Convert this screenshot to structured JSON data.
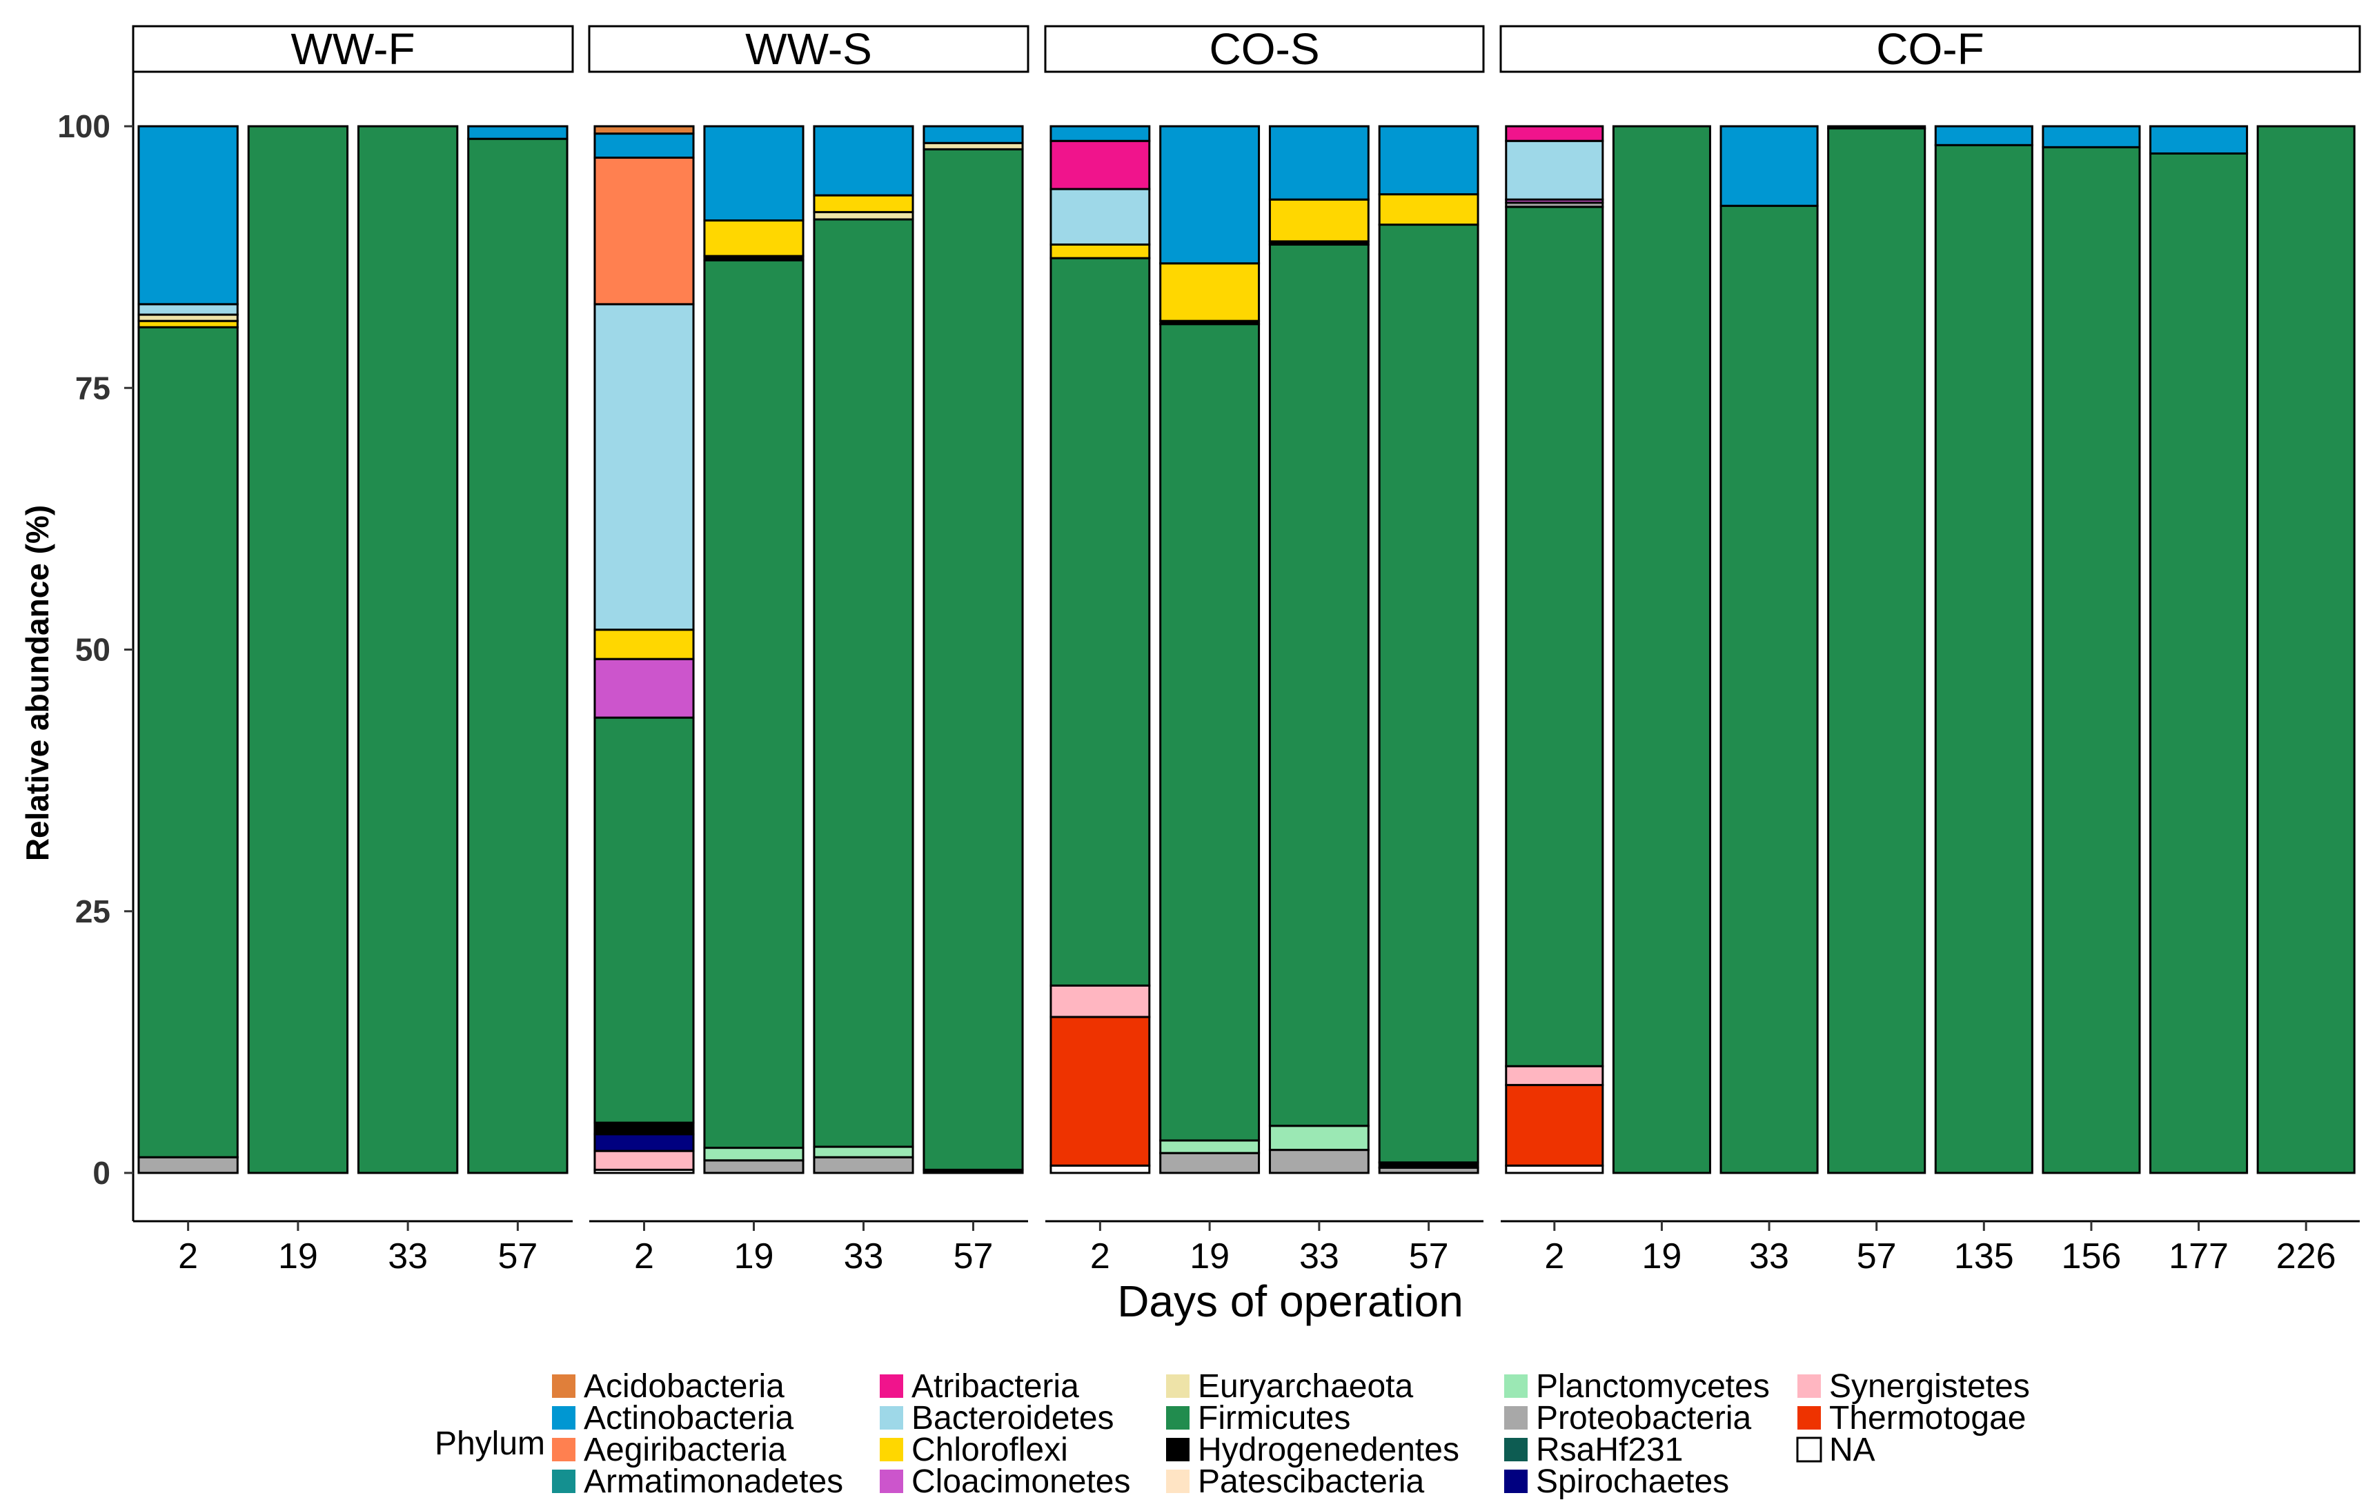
{
  "chart_data": {
    "type": "bar",
    "stacked": true,
    "xlabel": "Days of operation",
    "ylabel": "Relative abundance (%)",
    "ylim": [
      0,
      100
    ],
    "yticks": [
      0,
      25,
      50,
      75,
      100
    ],
    "grid": false,
    "legend": {
      "title": "Phylum",
      "position": "bottom",
      "entries": [
        {
          "name": "Acidobacteria",
          "color": "#E07F3A"
        },
        {
          "name": "Actinobacteria",
          "color": "#0097D2"
        },
        {
          "name": "Aegiribacteria",
          "color": "#FF8050"
        },
        {
          "name": "Armatimonadetes",
          "color": "#149090"
        },
        {
          "name": "Atribacteria",
          "color": "#F0148C"
        },
        {
          "name": "Bacteroidetes",
          "color": "#9ED8E8"
        },
        {
          "name": "Chloroflexi",
          "color": "#FFD700"
        },
        {
          "name": "Cloacimonetes",
          "color": "#CC55CC"
        },
        {
          "name": "Euryarchaeota",
          "color": "#EEE3A8"
        },
        {
          "name": "Firmicutes",
          "color": "#218C4E"
        },
        {
          "name": "Hydrogenedentes",
          "color": "#000000"
        },
        {
          "name": "Patescibacteria",
          "color": "#FFE4C4"
        },
        {
          "name": "Planctomycetes",
          "color": "#9BE8B4"
        },
        {
          "name": "Proteobacteria",
          "color": "#A8A8A8"
        },
        {
          "name": "RsaHf231",
          "color": "#0D5C52"
        },
        {
          "name": "Spirochaetes",
          "color": "#000080"
        },
        {
          "name": "Synergistetes",
          "color": "#FFB6C1"
        },
        {
          "name": "Thermotogae",
          "color": "#EE3300"
        },
        {
          "name": "NA",
          "color": "#FFFFFF"
        }
      ]
    },
    "panels": [
      {
        "name": "WW-F",
        "bars": [
          {
            "day": "2",
            "segments": [
              [
                "Proteobacteria",
                1.5
              ],
              [
                "Firmicutes",
                79.3
              ],
              [
                "Chloroflexi",
                0.6
              ],
              [
                "Euryarchaeota",
                0.6
              ],
              [
                "Bacteroidetes",
                1.0
              ],
              [
                "Actinobacteria",
                17.0
              ]
            ]
          },
          {
            "day": "19",
            "segments": [
              [
                "Firmicutes",
                100
              ]
            ]
          },
          {
            "day": "33",
            "segments": [
              [
                "Firmicutes",
                100
              ]
            ]
          },
          {
            "day": "57",
            "segments": [
              [
                "Firmicutes",
                98.8
              ],
              [
                "Actinobacteria",
                1.2
              ]
            ]
          }
        ]
      },
      {
        "name": "WW-S",
        "bars": [
          {
            "day": "2",
            "segments": [
              [
                "NA",
                0.3
              ],
              [
                "Synergistetes",
                1.8
              ],
              [
                "Spirochaetes",
                1.6
              ],
              [
                "Hydrogenedentes",
                1.1
              ],
              [
                "Firmicutes",
                38.7
              ],
              [
                "Cloacimonetes",
                5.6
              ],
              [
                "Chloroflexi",
                2.8
              ],
              [
                "Bacteroidetes",
                31.1
              ],
              [
                "Aegiribacteria",
                14.0
              ],
              [
                "Actinobacteria",
                2.3
              ],
              [
                "Acidobacteria",
                0.7
              ]
            ]
          },
          {
            "day": "19",
            "segments": [
              [
                "Proteobacteria",
                1.2
              ],
              [
                "Planctomycetes",
                1.2
              ],
              [
                "Firmicutes",
                84.8
              ],
              [
                "Hydrogenedentes",
                0.4
              ],
              [
                "Chloroflexi",
                3.4
              ],
              [
                "Actinobacteria",
                9.0
              ]
            ]
          },
          {
            "day": "33",
            "segments": [
              [
                "Proteobacteria",
                1.5
              ],
              [
                "Planctomycetes",
                1.0
              ],
              [
                "Firmicutes",
                88.6
              ],
              [
                "Euryarchaeota",
                0.7
              ],
              [
                "Chloroflexi",
                1.6
              ],
              [
                "Actinobacteria",
                6.6
              ]
            ]
          },
          {
            "day": "57",
            "segments": [
              [
                "Hydrogenedentes",
                0.3
              ],
              [
                "Firmicutes",
                97.5
              ],
              [
                "Euryarchaeota",
                0.6
              ],
              [
                "Actinobacteria",
                1.6
              ]
            ]
          }
        ]
      },
      {
        "name": "CO-S",
        "bars": [
          {
            "day": "2",
            "segments": [
              [
                "NA",
                0.7
              ],
              [
                "Thermotogae",
                14.2
              ],
              [
                "Synergistetes",
                3.0
              ],
              [
                "Firmicutes",
                69.5
              ],
              [
                "Chloroflexi",
                1.3
              ],
              [
                "Bacteroidetes",
                5.3
              ],
              [
                "Atribacteria",
                4.6
              ],
              [
                "Actinobacteria",
                1.4
              ]
            ]
          },
          {
            "day": "19",
            "segments": [
              [
                "Proteobacteria",
                1.9
              ],
              [
                "Planctomycetes",
                1.2
              ],
              [
                "Firmicutes",
                78.0
              ],
              [
                "Hydrogenedentes",
                0.3
              ],
              [
                "Chloroflexi",
                5.5
              ],
              [
                "Actinobacteria",
                13.1
              ]
            ]
          },
          {
            "day": "33",
            "segments": [
              [
                "Proteobacteria",
                2.2
              ],
              [
                "Planctomycetes",
                2.3
              ],
              [
                "Firmicutes",
                84.2
              ],
              [
                "Hydrogenedentes",
                0.3
              ],
              [
                "Chloroflexi",
                4.0
              ],
              [
                "Actinobacteria",
                7.0
              ]
            ]
          },
          {
            "day": "57",
            "segments": [
              [
                "Proteobacteria",
                0.5
              ],
              [
                "Hydrogenedentes",
                0.5
              ],
              [
                "Firmicutes",
                89.6
              ],
              [
                "Chloroflexi",
                2.9
              ],
              [
                "Actinobacteria",
                6.5
              ]
            ]
          }
        ]
      },
      {
        "name": "CO-F",
        "bars": [
          {
            "day": "2",
            "segments": [
              [
                "NA",
                0.7
              ],
              [
                "Thermotogae",
                7.7
              ],
              [
                "Synergistetes",
                1.8
              ],
              [
                "Firmicutes",
                82.1
              ],
              [
                "Proteobacteria",
                0.4
              ],
              [
                "Cloacimonetes",
                0.3
              ],
              [
                "Bacteroidetes",
                5.6
              ],
              [
                "Atribacteria",
                1.4
              ]
            ]
          },
          {
            "day": "19",
            "segments": [
              [
                "Firmicutes",
                100
              ]
            ]
          },
          {
            "day": "33",
            "segments": [
              [
                "Firmicutes",
                92.4
              ],
              [
                "Actinobacteria",
                7.6
              ]
            ]
          },
          {
            "day": "57",
            "segments": [
              [
                "Firmicutes",
                99.8
              ],
              [
                "Actinobacteria",
                0.2
              ]
            ]
          },
          {
            "day": "135",
            "segments": [
              [
                "Firmicutes",
                98.2
              ],
              [
                "Actinobacteria",
                1.8
              ]
            ]
          },
          {
            "day": "156",
            "segments": [
              [
                "Firmicutes",
                98.0
              ],
              [
                "Actinobacteria",
                2.0
              ]
            ]
          },
          {
            "day": "177",
            "segments": [
              [
                "Firmicutes",
                97.4
              ],
              [
                "Actinobacteria",
                2.6
              ]
            ]
          },
          {
            "day": "226",
            "segments": [
              [
                "Firmicutes",
                100
              ]
            ]
          }
        ]
      }
    ]
  }
}
